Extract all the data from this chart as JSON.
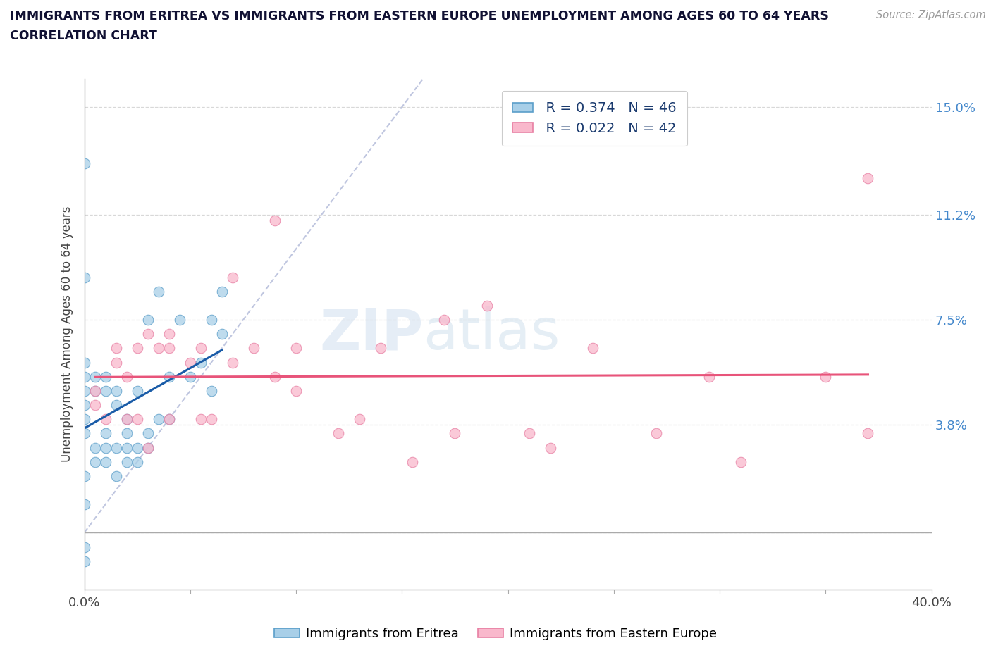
{
  "title_line1": "IMMIGRANTS FROM ERITREA VS IMMIGRANTS FROM EASTERN EUROPE UNEMPLOYMENT AMONG AGES 60 TO 64 YEARS",
  "title_line2": "CORRELATION CHART",
  "source_text": "Source: ZipAtlas.com",
  "ylabel": "Unemployment Among Ages 60 to 64 years",
  "xlim": [
    0.0,
    0.4
  ],
  "ylim": [
    -0.02,
    0.16
  ],
  "ytick_vals": [
    0.0,
    0.038,
    0.075,
    0.112,
    0.15
  ],
  "ytick_labels_right": [
    "",
    "3.8%",
    "7.5%",
    "11.2%",
    "15.0%"
  ],
  "xtick_vals": [
    0.0,
    0.05,
    0.1,
    0.15,
    0.2,
    0.25,
    0.3,
    0.35,
    0.4
  ],
  "watermark_part1": "ZIP",
  "watermark_part2": "atlas",
  "legend_R1": "R = 0.374",
  "legend_N1": "N = 46",
  "legend_R2": "R = 0.022",
  "legend_N2": "N = 42",
  "color_eritrea_fill": "#a8cfe8",
  "color_eritrea_edge": "#5b9ec9",
  "color_eastern_fill": "#f9b8cc",
  "color_eastern_edge": "#e87fa3",
  "color_trendline_eritrea": "#1a5ca8",
  "color_trendline_eastern": "#e8547a",
  "color_diagonal": "#b0b8d8",
  "label_eritrea": "Immigrants from Eritrea",
  "label_eastern": "Immigrants from Eastern Europe",
  "background_color": "#ffffff",
  "grid_color": "#d8d8d8",
  "title_color": "#111133",
  "axis_label_color": "#444444",
  "right_tick_color": "#4488cc",
  "eritrea_x": [
    0.0,
    0.0,
    0.0,
    0.0,
    0.0,
    0.0,
    0.0,
    0.0,
    0.0,
    0.0,
    0.0,
    0.0,
    0.005,
    0.005,
    0.005,
    0.005,
    0.01,
    0.01,
    0.01,
    0.01,
    0.01,
    0.015,
    0.015,
    0.015,
    0.015,
    0.02,
    0.02,
    0.02,
    0.02,
    0.025,
    0.025,
    0.025,
    0.03,
    0.03,
    0.03,
    0.035,
    0.035,
    0.04,
    0.04,
    0.045,
    0.05,
    0.055,
    0.06,
    0.06,
    0.065,
    0.065
  ],
  "eritrea_y": [
    0.13,
    0.09,
    0.06,
    0.055,
    0.05,
    0.045,
    0.04,
    0.035,
    0.02,
    0.01,
    -0.005,
    -0.01,
    0.055,
    0.05,
    0.03,
    0.025,
    0.055,
    0.05,
    0.035,
    0.03,
    0.025,
    0.05,
    0.045,
    0.03,
    0.02,
    0.04,
    0.035,
    0.03,
    0.025,
    0.05,
    0.03,
    0.025,
    0.075,
    0.035,
    0.03,
    0.085,
    0.04,
    0.055,
    0.04,
    0.075,
    0.055,
    0.06,
    0.075,
    0.05,
    0.085,
    0.07
  ],
  "eastern_x": [
    0.005,
    0.005,
    0.01,
    0.015,
    0.015,
    0.02,
    0.02,
    0.025,
    0.025,
    0.03,
    0.03,
    0.035,
    0.04,
    0.04,
    0.04,
    0.05,
    0.055,
    0.055,
    0.06,
    0.07,
    0.07,
    0.08,
    0.09,
    0.09,
    0.1,
    0.12,
    0.13,
    0.14,
    0.155,
    0.175,
    0.19,
    0.21,
    0.24,
    0.27,
    0.295,
    0.31,
    0.35,
    0.37,
    0.1,
    0.17,
    0.22,
    0.37
  ],
  "eastern_y": [
    0.05,
    0.045,
    0.04,
    0.065,
    0.06,
    0.055,
    0.04,
    0.065,
    0.04,
    0.07,
    0.03,
    0.065,
    0.07,
    0.065,
    0.04,
    0.06,
    0.065,
    0.04,
    0.04,
    0.09,
    0.06,
    0.065,
    0.11,
    0.055,
    0.05,
    0.035,
    0.04,
    0.065,
    0.025,
    0.035,
    0.08,
    0.035,
    0.065,
    0.035,
    0.055,
    0.025,
    0.055,
    0.125,
    0.065,
    0.075,
    0.03,
    0.035
  ]
}
